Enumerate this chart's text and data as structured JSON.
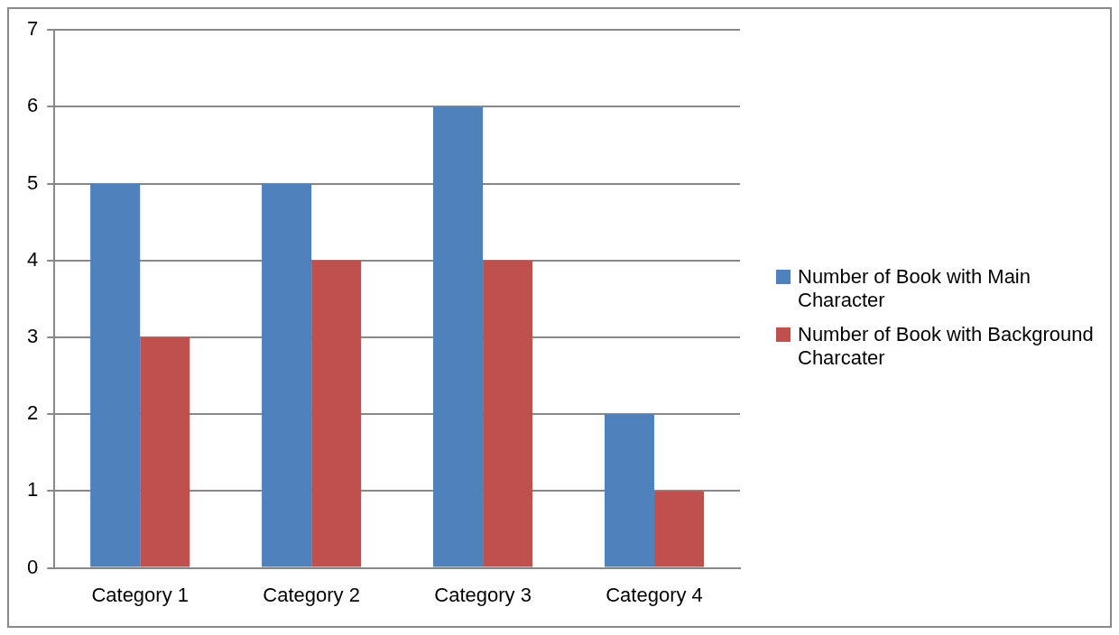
{
  "chart_data": {
    "type": "bar",
    "categories": [
      "Category 1",
      "Category 2",
      "Category 3",
      "Category 4"
    ],
    "series": [
      {
        "name": "Number of Book with Main Character",
        "color": "#4f81bd",
        "values": [
          5,
          5,
          6,
          2
        ]
      },
      {
        "name": "Number of Book with Background Charcater",
        "color": "#c0504d",
        "values": [
          3,
          4,
          4,
          1
        ]
      }
    ],
    "ylim": [
      0,
      7
    ],
    "yticks": [
      0,
      1,
      2,
      3,
      4,
      5,
      6,
      7
    ],
    "grid": "y",
    "legend": "right"
  }
}
